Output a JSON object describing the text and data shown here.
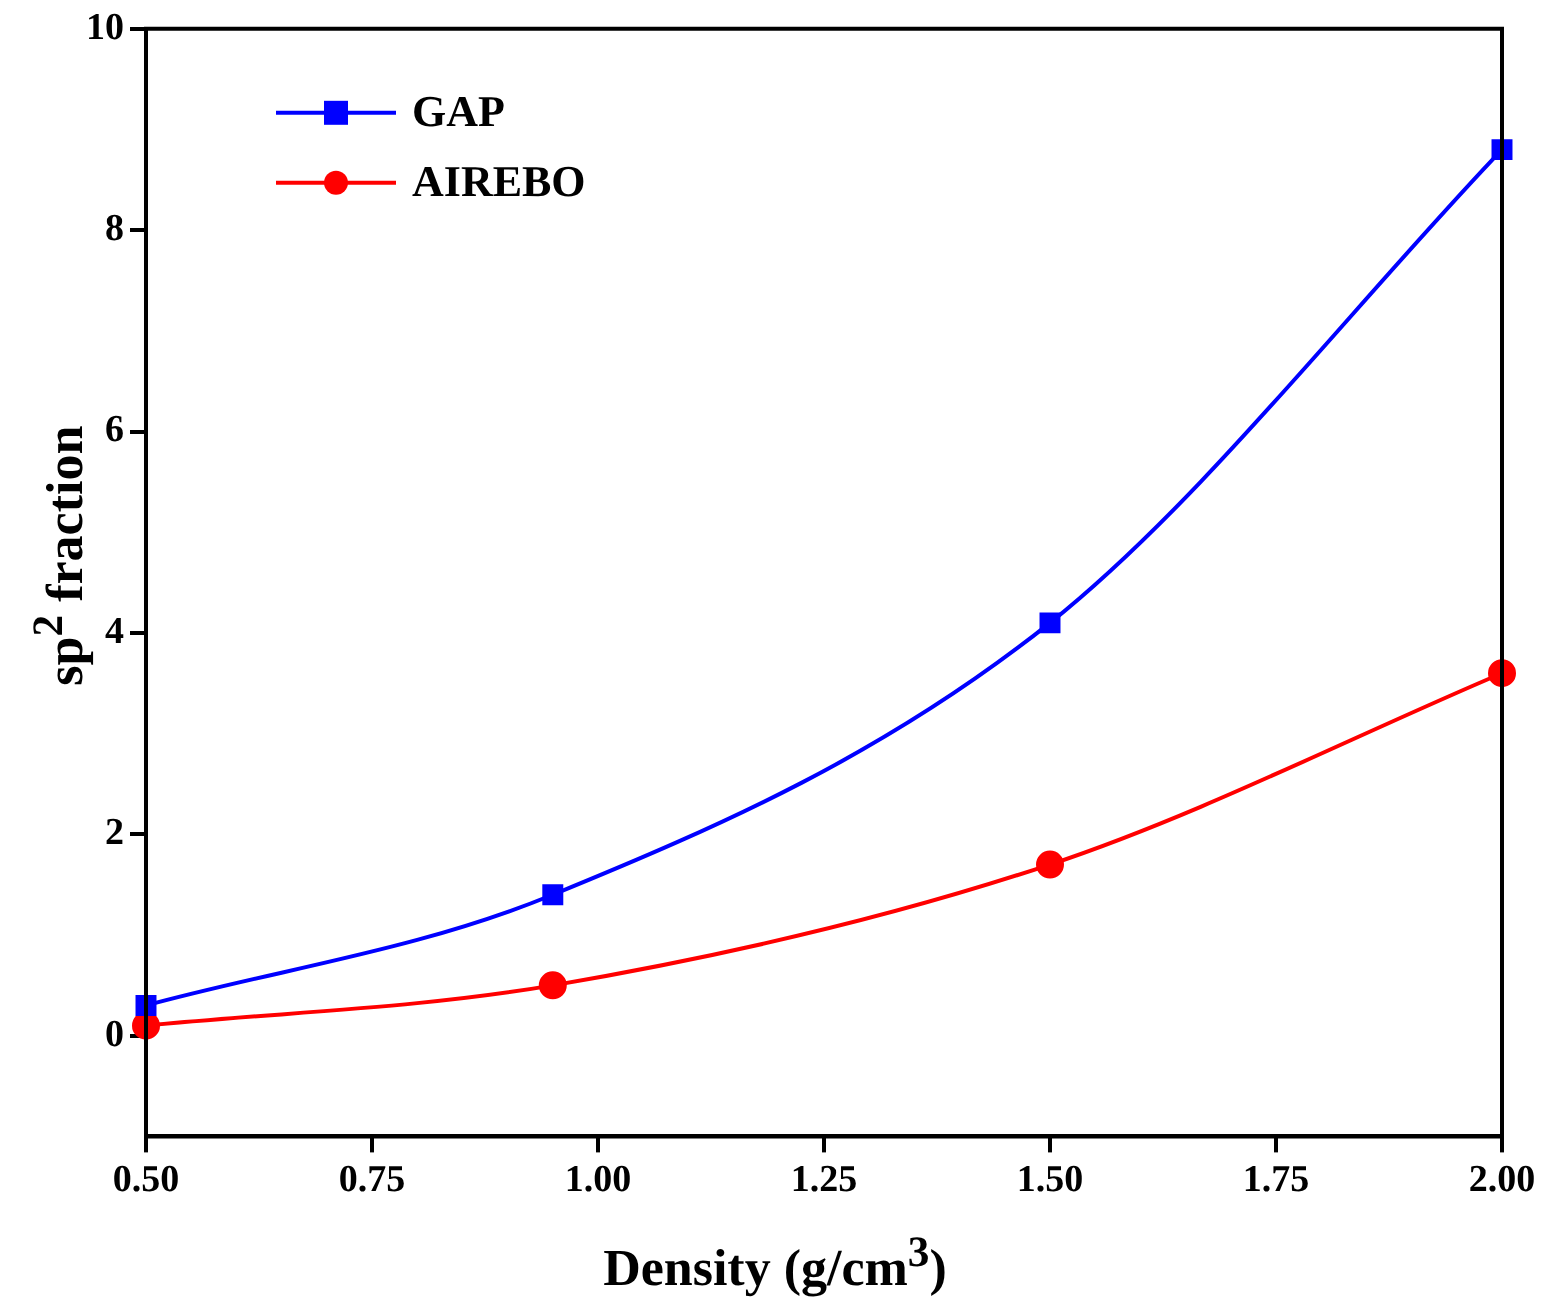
{
  "chart_data": {
    "type": "line",
    "xlabel": "Density (g/cm$^{3}$)",
    "ylabel": "sp$^{2}$ fraction",
    "series": [
      {
        "name": "GAP",
        "color": "#0000ff",
        "marker": "square",
        "x": [
          0.5,
          0.95,
          1.5,
          2.0
        ],
        "values": [
          0.3,
          1.4,
          4.1,
          8.8
        ]
      },
      {
        "name": "AIREBO",
        "color": "#ff0000",
        "marker": "circle",
        "x": [
          0.5,
          0.95,
          1.5,
          2.0
        ],
        "values": [
          0.1,
          0.5,
          1.7,
          3.6
        ]
      }
    ],
    "xlim": [
      0.5,
      2.0
    ],
    "xticks": [
      {
        "value": 0.5,
        "label": "0.50"
      },
      {
        "value": 0.75,
        "label": "0.75"
      },
      {
        "value": 1.0,
        "label": "1.00"
      },
      {
        "value": 1.25,
        "label": "1.25"
      },
      {
        "value": 1.5,
        "label": "1.50"
      },
      {
        "value": 1.75,
        "label": "1.75"
      },
      {
        "value": 2.0,
        "label": "2.00"
      }
    ],
    "ylim": [
      -1,
      10
    ],
    "yticks": [
      0,
      2,
      4,
      6,
      8,
      10
    ],
    "grid": false,
    "legend": "top left",
    "line_style": "solid"
  }
}
